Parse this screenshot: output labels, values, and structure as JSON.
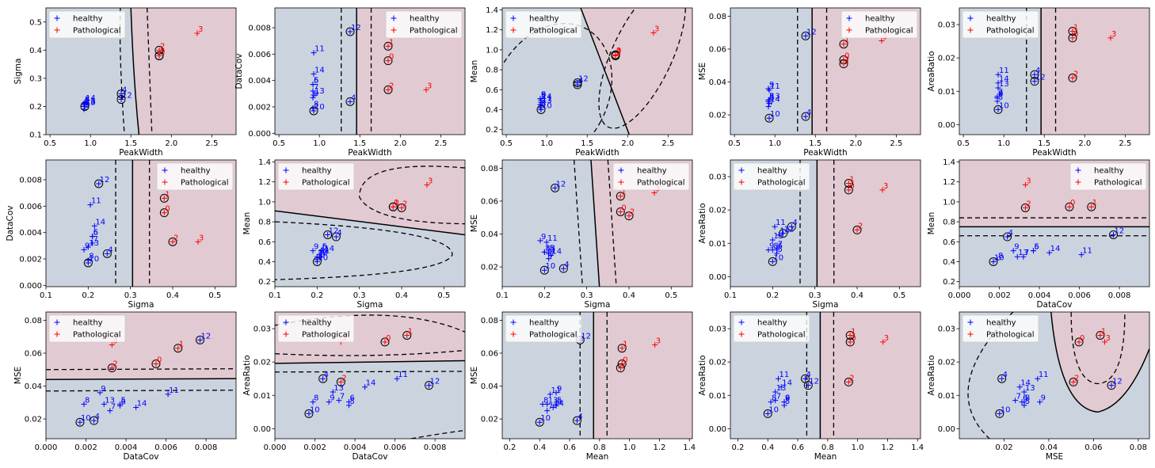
{
  "legend_labels": [
    "healthy",
    "Pathological"
  ],
  "colors": {
    "healthy": "#0000ff",
    "pathological": "#ff0000",
    "region_healthy": "#cbd4de",
    "region_pathological": "#e1cad2"
  },
  "variables": {
    "PeakWidth": {
      "0": 1.85,
      "1": 1.85,
      "2": 1.85,
      "3": 2.32,
      "4": 1.38,
      "5": 0.92,
      "6": 0.92,
      "7": 0.92,
      "8": 0.92,
      "9": 0.92,
      "10": 0.93,
      "11": 0.93,
      "12": 1.38,
      "13": 0.93,
      "14": 0.93
    },
    "Sigma": {
      "0": 0.38,
      "1": 0.38,
      "2": 0.4,
      "3": 0.46,
      "4": 0.245,
      "5": 0.21,
      "6": 0.21,
      "7": 0.21,
      "8": 0.2,
      "9": 0.19,
      "10": 0.2,
      "11": 0.205,
      "12": 0.225,
      "13": 0.2,
      "14": 0.215
    },
    "DataCov": {
      "0": 0.0055,
      "1": 0.0066,
      "2": 0.0033,
      "3": 0.0033,
      "4": 0.0024,
      "5": 0.0037,
      "6": 0.0037,
      "7": 0.0032,
      "8": 0.0019,
      "9": 0.0027,
      "10": 0.0017,
      "11": 0.0061,
      "12": 0.0077,
      "13": 0.0029,
      "14": 0.0045
    },
    "Mean": {
      "0": 0.95,
      "1": 0.95,
      "2": 0.94,
      "3": 1.17,
      "4": 0.65,
      "5": 0.51,
      "6": 0.51,
      "7": 0.45,
      "8": 0.42,
      "9": 0.51,
      "10": 0.4,
      "11": 0.47,
      "12": 0.67,
      "13": 0.45,
      "14": 0.49
    },
    "MSE": {
      "0": 0.0535,
      "1": 0.063,
      "2": 0.051,
      "3": 0.065,
      "4": 0.019,
      "5": 0.029,
      "6": 0.028,
      "7": 0.025,
      "8": 0.029,
      "9": 0.036,
      "10": 0.018,
      "11": 0.035,
      "12": 0.068,
      "13": 0.029,
      "14": 0.027
    },
    "AreaRatio": {
      "0": 0.026,
      "1": 0.028,
      "2": 0.014,
      "3": 0.026,
      "4": 0.015,
      "5": 0.007,
      "6": 0.008,
      "7": 0.0085,
      "8": 0.008,
      "9": 0.008,
      "10": 0.0045,
      "11": 0.015,
      "12": 0.013,
      "13": 0.011,
      "14": 0.0125
    }
  },
  "circled": [
    0,
    1,
    2,
    4,
    10,
    12
  ],
  "chart_data": [
    {
      "type": "scatter",
      "title": "",
      "xlabel": "PeakWidth",
      "ylabel": "Sigma",
      "x_var": "PeakWidth",
      "y_var": "Sigma",
      "xlim": [
        0.45,
        2.8
      ],
      "ylim": [
        0.1,
        0.55
      ],
      "xticks": [
        0.5,
        1.0,
        1.5,
        2.0,
        2.5
      ],
      "yticks": [
        0.1,
        0.2,
        0.3,
        0.4,
        0.5
      ],
      "xtick_labels": [
        "0.5",
        "1.0",
        "1.5",
        "2.0",
        "2.5"
      ],
      "ytick_labels": [
        "0.1",
        "0.2",
        "0.3",
        "0.4",
        "0.5"
      ],
      "legend": "top-left"
    },
    {
      "type": "scatter",
      "title": "",
      "xlabel": "PeakWidth",
      "ylabel": "DataCov",
      "x_var": "PeakWidth",
      "y_var": "DataCov",
      "xlim": [
        0.45,
        2.8
      ],
      "ylim": [
        -0.0001,
        0.0095
      ],
      "xticks": [
        0.5,
        1.0,
        1.5,
        2.0,
        2.5
      ],
      "yticks": [
        0.0,
        0.002,
        0.004,
        0.006,
        0.008
      ],
      "xtick_labels": [
        "0.5",
        "1.0",
        "1.5",
        "2.0",
        "2.5"
      ],
      "ytick_labels": [
        "0.000",
        "0.002",
        "0.004",
        "0.006",
        "0.008"
      ],
      "legend": "top-right"
    },
    {
      "type": "scatter",
      "title": "",
      "xlabel": "PeakWidth",
      "ylabel": "Mean",
      "x_var": "PeakWidth",
      "y_var": "Mean",
      "xlim": [
        0.45,
        2.8
      ],
      "ylim": [
        0.15,
        1.42
      ],
      "xticks": [
        0.5,
        1.0,
        1.5,
        2.0,
        2.5
      ],
      "yticks": [
        0.2,
        0.4,
        0.6,
        0.8,
        1.0,
        1.2,
        1.4
      ],
      "xtick_labels": [
        "0.5",
        "1.0",
        "1.5",
        "2.0",
        "2.5"
      ],
      "ytick_labels": [
        "0.2",
        "0.4",
        "0.6",
        "0.8",
        "1.0",
        "1.2",
        "1.4"
      ],
      "legend": "top-left"
    },
    {
      "type": "scatter",
      "title": "",
      "xlabel": "PeakWidth",
      "ylabel": "MSE",
      "x_var": "PeakWidth",
      "y_var": "MSE",
      "xlim": [
        0.45,
        2.8
      ],
      "ylim": [
        0.008,
        0.085
      ],
      "xticks": [
        0.5,
        1.0,
        1.5,
        2.0,
        2.5
      ],
      "yticks": [
        0.02,
        0.04,
        0.06,
        0.08
      ],
      "xtick_labels": [
        "0.5",
        "1.0",
        "1.5",
        "2.0",
        "2.5"
      ],
      "ytick_labels": [
        "0.02",
        "0.04",
        "0.06",
        "0.08"
      ],
      "legend": "top-right"
    },
    {
      "type": "scatter",
      "title": "",
      "xlabel": "PeakWidth",
      "ylabel": "AreaRatio",
      "x_var": "PeakWidth",
      "y_var": "AreaRatio",
      "xlim": [
        0.45,
        2.8
      ],
      "ylim": [
        -0.003,
        0.035
      ],
      "xticks": [
        0.5,
        1.0,
        1.5,
        2.0,
        2.5
      ],
      "yticks": [
        0.0,
        0.01,
        0.02,
        0.03
      ],
      "xtick_labels": [
        "0.5",
        "1.0",
        "1.5",
        "2.0",
        "2.5"
      ],
      "ytick_labels": [
        "0.00",
        "0.01",
        "0.02",
        "0.03"
      ],
      "legend": "top-left"
    },
    {
      "type": "scatter",
      "title": "",
      "xlabel": "Sigma",
      "ylabel": "DataCov",
      "x_var": "Sigma",
      "y_var": "DataCov",
      "xlim": [
        0.1,
        0.55
      ],
      "ylim": [
        -0.0001,
        0.0095
      ],
      "xticks": [
        0.1,
        0.2,
        0.3,
        0.4,
        0.5
      ],
      "yticks": [
        0.0,
        0.002,
        0.004,
        0.006,
        0.008
      ],
      "xtick_labels": [
        "0.1",
        "0.2",
        "0.3",
        "0.4",
        "0.5"
      ],
      "ytick_labels": [
        "0.000",
        "0.002",
        "0.004",
        "0.006",
        "0.008"
      ],
      "legend": "top-right"
    },
    {
      "type": "scatter",
      "title": "",
      "xlabel": "Sigma",
      "ylabel": "Mean",
      "x_var": "Sigma",
      "y_var": "Mean",
      "xlim": [
        0.1,
        0.55
      ],
      "ylim": [
        0.15,
        1.42
      ],
      "xticks": [
        0.1,
        0.2,
        0.3,
        0.4,
        0.5
      ],
      "yticks": [
        0.2,
        0.4,
        0.6,
        0.8,
        1.0,
        1.2,
        1.4
      ],
      "xtick_labels": [
        "0.1",
        "0.2",
        "0.3",
        "0.4",
        "0.5"
      ],
      "ytick_labels": [
        "0.2",
        "0.4",
        "0.6",
        "0.8",
        "1.0",
        "1.2",
        "1.4"
      ],
      "legend": "top-left"
    },
    {
      "type": "scatter",
      "title": "",
      "xlabel": "Sigma",
      "ylabel": "MSE",
      "x_var": "Sigma",
      "y_var": "MSE",
      "xlim": [
        0.1,
        0.55
      ],
      "ylim": [
        0.008,
        0.085
      ],
      "xticks": [
        0.1,
        0.2,
        0.3,
        0.4,
        0.5
      ],
      "yticks": [
        0.02,
        0.04,
        0.06,
        0.08
      ],
      "xtick_labels": [
        "0.1",
        "0.2",
        "0.3",
        "0.4",
        "0.5"
      ],
      "ytick_labels": [
        "0.02",
        "0.04",
        "0.06",
        "0.08"
      ],
      "legend": "top-right"
    },
    {
      "type": "scatter",
      "title": "",
      "xlabel": "Sigma",
      "ylabel": "AreaRatio",
      "x_var": "Sigma",
      "y_var": "AreaRatio",
      "xlim": [
        0.1,
        0.55
      ],
      "ylim": [
        -0.003,
        0.035
      ],
      "xticks": [
        0.1,
        0.2,
        0.3,
        0.4,
        0.5
      ],
      "yticks": [
        0.0,
        0.01,
        0.02,
        0.03
      ],
      "xtick_labels": [
        "0.1",
        "0.2",
        "0.3",
        "0.4",
        "0.5"
      ],
      "ytick_labels": [
        "0.00",
        "0.01",
        "0.02",
        "0.03"
      ],
      "legend": "top-left"
    },
    {
      "type": "scatter",
      "title": "",
      "xlabel": "DataCov",
      "ylabel": "Mean",
      "x_var": "DataCov",
      "y_var": "Mean",
      "xlim": [
        0.0,
        0.0095
      ],
      "ylim": [
        0.15,
        1.42
      ],
      "xticks": [
        0.0,
        0.002,
        0.004,
        0.006,
        0.008
      ],
      "yticks": [
        0.2,
        0.4,
        0.6,
        0.8,
        1.0,
        1.2,
        1.4
      ],
      "xtick_labels": [
        "0.000",
        "0.002",
        "0.004",
        "0.006",
        "0.008"
      ],
      "ytick_labels": [
        "0.2",
        "0.4",
        "0.6",
        "0.8",
        "1.0",
        "1.2",
        "1.4"
      ],
      "legend": "top-right"
    },
    {
      "type": "scatter",
      "title": "",
      "xlabel": "DataCov",
      "ylabel": "MSE",
      "x_var": "DataCov",
      "y_var": "MSE",
      "xlim": [
        0.0,
        0.0095
      ],
      "ylim": [
        0.008,
        0.085
      ],
      "xticks": [
        0.0,
        0.002,
        0.004,
        0.006,
        0.008
      ],
      "yticks": [
        0.02,
        0.04,
        0.06,
        0.08
      ],
      "xtick_labels": [
        "0.000",
        "0.002",
        "0.004",
        "0.006",
        "0.008"
      ],
      "ytick_labels": [
        "0.02",
        "0.04",
        "0.06",
        "0.08"
      ],
      "legend": "top-left"
    },
    {
      "type": "scatter",
      "title": "",
      "xlabel": "DataCov",
      "ylabel": "AreaRatio",
      "x_var": "DataCov",
      "y_var": "AreaRatio",
      "xlim": [
        0.0,
        0.0095
      ],
      "ylim": [
        -0.003,
        0.035
      ],
      "xticks": [
        0.0,
        0.002,
        0.004,
        0.006,
        0.008
      ],
      "yticks": [
        0.0,
        0.01,
        0.02,
        0.03
      ],
      "xtick_labels": [
        "0.000",
        "0.002",
        "0.004",
        "0.006",
        "0.008"
      ],
      "ytick_labels": [
        "0.00",
        "0.01",
        "0.02",
        "0.03"
      ],
      "legend": "top-left"
    },
    {
      "type": "scatter",
      "title": "",
      "xlabel": "Mean",
      "ylabel": "MSE",
      "x_var": "Mean",
      "y_var": "MSE",
      "xlim": [
        0.15,
        1.42
      ],
      "ylim": [
        0.008,
        0.085
      ],
      "xticks": [
        0.2,
        0.4,
        0.6,
        0.8,
        1.0,
        1.2,
        1.4
      ],
      "yticks": [
        0.02,
        0.04,
        0.06,
        0.08
      ],
      "xtick_labels": [
        "0.2",
        "0.4",
        "0.6",
        "0.8",
        "1.0",
        "1.2",
        "1.4"
      ],
      "ytick_labels": [
        "0.02",
        "0.04",
        "0.06",
        "0.08"
      ],
      "legend": "top-left"
    },
    {
      "type": "scatter",
      "title": "",
      "xlabel": "Mean",
      "ylabel": "AreaRatio",
      "x_var": "Mean",
      "y_var": "AreaRatio",
      "xlim": [
        0.15,
        1.42
      ],
      "ylim": [
        -0.003,
        0.035
      ],
      "xticks": [
        0.2,
        0.4,
        0.6,
        0.8,
        1.0,
        1.2,
        1.4
      ],
      "yticks": [
        0.0,
        0.01,
        0.02,
        0.03
      ],
      "xtick_labels": [
        "0.2",
        "0.4",
        "0.6",
        "0.8",
        "1.0",
        "1.2",
        "1.4"
      ],
      "ytick_labels": [
        "0.00",
        "0.01",
        "0.02",
        "0.03"
      ],
      "legend": "top-left"
    },
    {
      "type": "scatter",
      "title": "",
      "xlabel": "MSE",
      "ylabel": "AreaRatio",
      "x_var": "MSE",
      "y_var": "AreaRatio",
      "xlim": [
        0.0,
        0.085
      ],
      "ylim": [
        -0.003,
        0.035
      ],
      "xticks": [
        0.02,
        0.04,
        0.06,
        0.08
      ],
      "yticks": [
        0.0,
        0.01,
        0.02,
        0.03
      ],
      "xtick_labels": [
        "0.02",
        "0.04",
        "0.06",
        "0.08"
      ],
      "ytick_labels": [
        "0.00",
        "0.01",
        "0.02",
        "0.03"
      ],
      "legend": "top-left"
    }
  ]
}
